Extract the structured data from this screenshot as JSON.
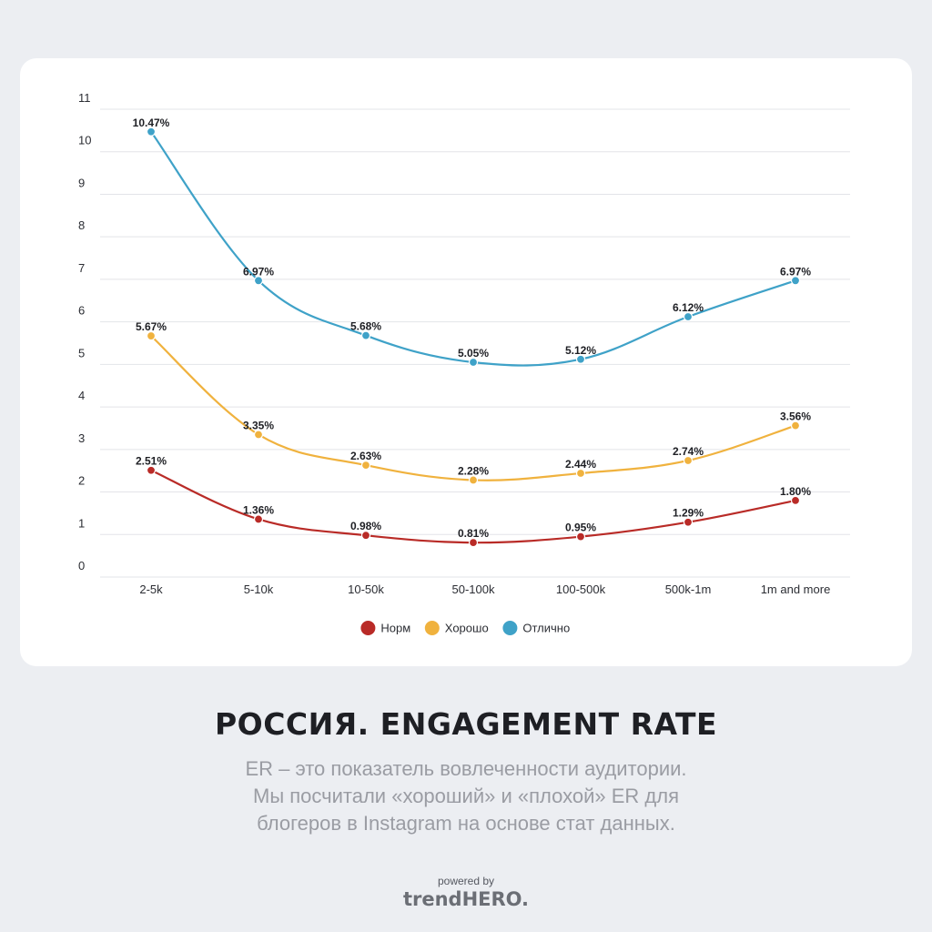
{
  "chart_data": {
    "type": "line",
    "categories": [
      "2-5k",
      "5-10k",
      "10-50k",
      "50-100k",
      "100-500k",
      "500k-1m",
      "1m and more"
    ],
    "series": [
      {
        "name": "Норм",
        "color": "#b92b27",
        "values": [
          2.51,
          1.36,
          0.98,
          0.81,
          0.95,
          1.29,
          1.8
        ],
        "labels": [
          "2.51%",
          "1.36%",
          "0.98%",
          "0.81%",
          "0.95%",
          "1.29%",
          "1.80%"
        ]
      },
      {
        "name": "Хорошо",
        "color": "#f0b23e",
        "values": [
          5.67,
          3.35,
          2.63,
          2.28,
          2.44,
          2.74,
          3.56
        ],
        "labels": [
          "5.67%",
          "3.35%",
          "2.63%",
          "2.28%",
          "2.44%",
          "2.74%",
          "3.56%"
        ]
      },
      {
        "name": "Отлично",
        "color": "#3fa2c8",
        "values": [
          10.47,
          6.97,
          5.68,
          5.05,
          5.12,
          6.12,
          6.97
        ],
        "labels": [
          "10.47%",
          "6.97%",
          "5.68%",
          "5.05%",
          "5.12%",
          "6.12%",
          "6.97%"
        ]
      }
    ],
    "yticks": [
      "0",
      "1",
      "2",
      "3",
      "4",
      "5",
      "6",
      "7",
      "8",
      "9",
      "10",
      "11"
    ],
    "ylim": [
      0,
      11
    ],
    "grid": true,
    "legend": "bottom-center"
  },
  "title": "РОССИЯ. ENGAGEMENT RATE",
  "description": [
    "ER – это показатель вовлеченности аудитории.",
    "Мы посчитали «хороший» и «плохой» ER для",
    "блогеров в Instagram на основе стат данных."
  ],
  "powered_by": "powered by",
  "brand": "trendHERO."
}
